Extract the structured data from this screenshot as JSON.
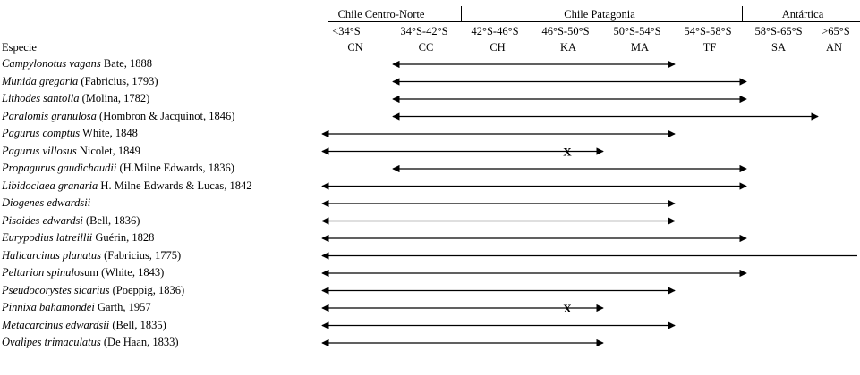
{
  "header": {
    "groups": [
      {
        "label": "Chile  Centro-Norte",
        "start": 0,
        "end": 1
      },
      {
        "label": "Chile Patagonia",
        "start": 2,
        "end": 5
      },
      {
        "label": "Antártica",
        "start": 6,
        "end": 7
      }
    ],
    "latitudes": [
      "<34°S",
      "34°S-42°S",
      "42°S-46°S",
      "46°S-50°S",
      "50°S-54°S",
      "54°S-58°S",
      "58°S-65°S",
      ">65°S"
    ],
    "species_header": "Especie",
    "codes": [
      "CN",
      "CC",
      "CH",
      "KA",
      "MA",
      "TF",
      "SA",
      "AN"
    ]
  },
  "species": [
    {
      "name": "Campylonotus vagans",
      "author": " Bate, 1888",
      "from": 1,
      "to": 5
    },
    {
      "name": "Munida gregaria",
      "author": " (Fabricius, 1793)",
      "from": 1,
      "to": 6
    },
    {
      "name": "Lithodes santolla",
      "author": " (Molina, 1782)",
      "from": 1,
      "to": 6
    },
    {
      "name": "Paralomis granulosa",
      "author": " (Hombron & Jacquinot, 1846)",
      "from": 1,
      "to": 7
    },
    {
      "name": "Pagurus comptus",
      "author": "  White, 1848",
      "from": 0,
      "to": 5
    },
    {
      "name": "Pagurus villosus",
      "author": " Nicolet, 1849",
      "from": 0,
      "to": 4,
      "mark_at": 3.5,
      "mark": "X"
    },
    {
      "name": "Propagurus gaudichaudii",
      "author": " (H.Milne Edwards, 1836)",
      "from": 1,
      "to": 6
    },
    {
      "name": "Libidoclaea granaria",
      "author": "  H. Milne Edwards & Lucas, 1842",
      "from": 0,
      "to": 6
    },
    {
      "name": "Diogenes edwardsii",
      "author": "",
      "from": 0,
      "to": 5
    },
    {
      "name": "Pisoides edwardsi",
      "author": " (Bell, 1836)",
      "from": 0,
      "to": 5
    },
    {
      "name": "Eurypodius latreillii",
      "author": "  Guérin, 1828",
      "from": 0,
      "to": 6
    },
    {
      "name": "Halicarcinus planatus",
      "author": " (Fabricius, 1775)",
      "from": 0,
      "to": 8
    },
    {
      "name": "Peltarion spinul",
      "author_rest": "osum",
      "author": " (White, 1843)",
      "from": 0,
      "to": 6
    },
    {
      "name": "Pseudocorystes sicarius",
      "author": " (Poeppig, 1836)",
      "from": 0,
      "to": 5
    },
    {
      "name": "Pinnixa bahamondei",
      "author": "  Garth, 1957",
      "from": 0,
      "to": 4,
      "mark_at": 3.5,
      "mark": "X"
    },
    {
      "name": "Metacarcinus edwardsii",
      "author": " (Bell, 1835)",
      "from": 0,
      "to": 5
    },
    {
      "name": "Ovalipes trimaculatus",
      "author": "  (De Haan, 1833)",
      "from": 0,
      "to": 4
    }
  ]
}
